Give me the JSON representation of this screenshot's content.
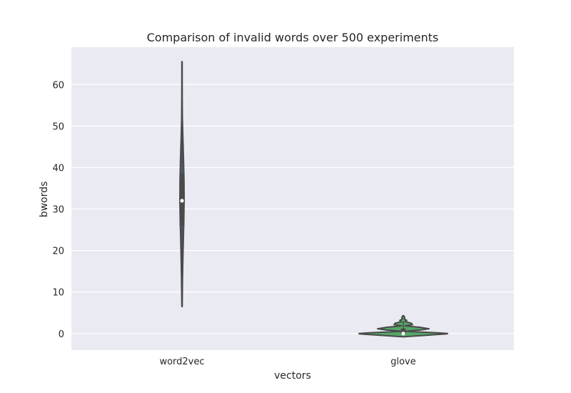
{
  "chart_data": {
    "type": "violin",
    "title": "Comparison of invalid words over 500 experiments",
    "xlabel": "vectors",
    "ylabel": "bwords",
    "ylim": [
      -4,
      69
    ],
    "yticks": [
      0,
      10,
      20,
      30,
      40,
      50,
      60
    ],
    "ytick_labels": [
      "0",
      "10",
      "20",
      "30",
      "40",
      "50",
      "60"
    ],
    "categories": [
      "word2vec",
      "glove"
    ],
    "grid": true,
    "background_color": "#eaeaf2",
    "grid_color": "#ffffff",
    "outline_color": "#4a4a4a",
    "series": [
      {
        "category": "word2vec",
        "color": "#4c72b0",
        "min": 6.5,
        "max": 65.5,
        "q1": 26,
        "median": 32,
        "q3": 38.5,
        "whisker_low": 17,
        "whisker_high": 47,
        "density_y": [
          6.5,
          12,
          17,
          22,
          27,
          32,
          37,
          42,
          47,
          52,
          57,
          65.5
        ],
        "density_w": [
          0.5,
          1.2,
          2.2,
          3.5,
          5.0,
          6.0,
          5.6,
          4.2,
          2.5,
          1.0,
          0.6,
          0.4
        ]
      },
      {
        "category": "glove",
        "color": "#55a868",
        "min": 0,
        "max": 4.3,
        "q1": 0,
        "median": 0,
        "q3": 1.2,
        "whisker_low": 0,
        "whisker_high": 3,
        "density_y": [
          -0.8,
          -0.45,
          -0.1,
          0,
          0.15,
          0.55,
          0.85,
          1.15,
          1.5,
          1.85,
          2.15,
          2.5,
          2.85,
          3.15,
          3.5,
          3.9,
          4.3
        ],
        "density_w": [
          0,
          60,
          122,
          124,
          100,
          5,
          48,
          72,
          48,
          5,
          26,
          22,
          5,
          10,
          3,
          4,
          1
        ]
      }
    ]
  }
}
